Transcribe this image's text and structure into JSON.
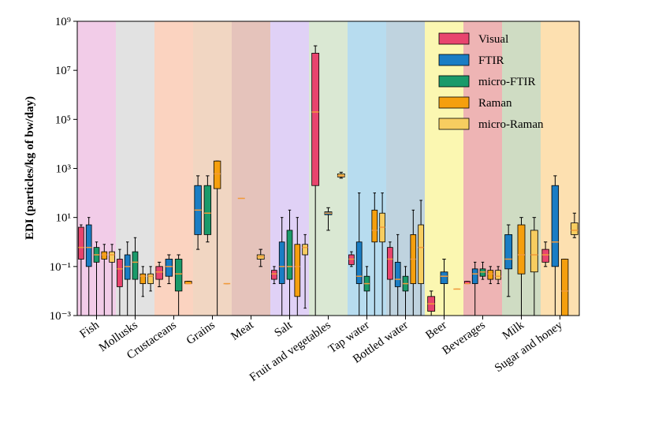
{
  "chart_data": {
    "type": "box",
    "y_label": "EDI (particles/kg of bw/day)",
    "y_scale": "log",
    "ylim": [
      0.001,
      1000000000
    ],
    "yticks": [
      {
        "value": 0.001,
        "label": "10⁻³"
      },
      {
        "value": 0.1,
        "label": "10⁻¹"
      },
      {
        "value": 10,
        "label": "10¹"
      },
      {
        "value": 1000,
        "label": "10³"
      },
      {
        "value": 100000,
        "label": "10⁵"
      },
      {
        "value": 10000000,
        "label": "10⁷"
      },
      {
        "value": 1000000000,
        "label": "10⁹"
      }
    ],
    "legend": "upper right",
    "median_color": "#f29a3a",
    "categories": [
      "Fish",
      "Mollusks",
      "Crustaceans",
      "Grains",
      "Meat",
      "Salt",
      "Fruit and vegetables",
      "Tap water",
      "Bottled water",
      "Beer",
      "Beverages",
      "Milk",
      "Sugar and honey"
    ],
    "band_colors": [
      "#f2cce8",
      "#e2e2e2",
      "#fbd3c0",
      "#f1d6c2",
      "#e5c3bb",
      "#e0d1f6",
      "#dae8d3",
      "#b7dcef",
      "#bfd3df",
      "#fbf7b1",
      "#eeb4b4",
      "#cfdcc3",
      "#fde0b0"
    ],
    "series": [
      {
        "name": "Visual",
        "color": "#e8446e",
        "values": [
          [
            0.001,
            0.2,
            0.6,
            4,
            5
          ],
          [
            0.001,
            0.015,
            0.08,
            0.2,
            0.5
          ],
          [
            0.015,
            0.03,
            0.06,
            0.1,
            0.15
          ],
          null,
          null,
          [
            0.02,
            0.03,
            0.05,
            0.07,
            0.1
          ],
          [
            0.001,
            200,
            200000,
            50000000,
            100000000
          ],
          [
            0.1,
            0.12,
            0.2,
            0.3,
            0.4
          ],
          [
            0.001,
            0.03,
            0.2,
            0.6,
            1
          ],
          [
            0.001,
            0.0015,
            0.003,
            0.006,
            0.01
          ],
          [
            0.02,
            0.02,
            0.02,
            0.025,
            0.025
          ],
          null,
          [
            0.1,
            0.15,
            0.3,
            0.5,
            1
          ]
        ]
      },
      {
        "name": "FTIR",
        "color": "#1a7dc4",
        "values": [
          [
            0.001,
            0.1,
            0.6,
            5,
            10
          ],
          [
            0.001,
            0.03,
            0.1,
            0.3,
            1
          ],
          [
            0.02,
            0.04,
            0.1,
            0.2,
            0.3
          ],
          [
            0.5,
            2,
            20,
            200,
            500
          ],
          null,
          [
            0.001,
            0.02,
            0.1,
            1,
            10
          ],
          [
            3,
            13,
            15,
            17,
            25
          ],
          [
            0.001,
            0.02,
            0.04,
            1,
            100
          ],
          [
            0.001,
            0.015,
            0.03,
            0.15,
            2
          ],
          [
            0.001,
            0.02,
            0.04,
            0.06,
            0.2
          ],
          [
            0.001,
            0.02,
            0.05,
            0.08,
            0.15
          ],
          [
            0.006,
            0.08,
            0.2,
            2,
            5
          ],
          [
            0.001,
            0.1,
            1,
            200,
            500
          ]
        ]
      },
      {
        "name": "micro-FTIR",
        "color": "#1a9a6a",
        "values": [
          [
            0.001,
            0.15,
            0.3,
            0.6,
            1
          ],
          [
            0.001,
            0.03,
            0.15,
            0.4,
            1.5
          ],
          [
            0.001,
            0.01,
            0.05,
            0.2,
            0.3
          ],
          [
            1,
            2,
            15,
            200,
            500
          ],
          null,
          [
            0.001,
            0.03,
            0.1,
            3,
            20
          ],
          null,
          [
            0.001,
            0.01,
            0.02,
            0.04,
            0.1
          ],
          [
            0.001,
            0.01,
            0.02,
            0.04,
            0.1
          ],
          null,
          [
            0.03,
            0.04,
            0.06,
            0.08,
            0.15
          ],
          null,
          null
        ]
      },
      {
        "name": "Raman",
        "color": "#f59f0e",
        "values": [
          [
            0.001,
            0.2,
            0.3,
            0.4,
            0.8
          ],
          [
            0.006,
            0.02,
            0.04,
            0.05,
            0.1
          ],
          [
            0.02,
            0.02,
            0.02,
            0.025,
            0.025
          ],
          [
            0.001,
            150,
            600,
            2000,
            2000
          ],
          [
            60,
            60,
            60,
            60,
            60
          ],
          [
            0.001,
            0.006,
            0.1,
            0.8,
            10
          ],
          null,
          [
            0.001,
            1,
            3,
            20,
            100
          ],
          [
            0.001,
            0.02,
            0.2,
            2,
            20
          ],
          [
            0.012,
            0.012,
            0.012,
            0.012,
            0.012
          ],
          [
            0.02,
            0.03,
            0.05,
            0.07,
            0.1
          ],
          [
            0.001,
            0.05,
            0.3,
            5,
            10
          ],
          [
            0.001,
            0.001,
            0.01,
            0.2,
            0.2
          ]
        ]
      },
      {
        "name": "micro-Raman",
        "color": "#f7cd60",
        "values": [
          [
            0.001,
            0.15,
            0.3,
            0.4,
            0.8
          ],
          [
            0.01,
            0.02,
            0.04,
            0.05,
            0.1
          ],
          null,
          [
            0.02,
            0.02,
            0.02,
            0.02,
            0.02
          ],
          [
            0.1,
            0.2,
            0.25,
            0.3,
            0.5
          ],
          [
            0.002,
            0.3,
            0.6,
            0.8,
            2
          ],
          [
            400,
            450,
            500,
            600,
            700
          ],
          [
            0.001,
            1,
            4,
            15,
            100
          ],
          [
            0.001,
            0.02,
            0.6,
            5,
            50
          ],
          null,
          [
            0.02,
            0.03,
            0.04,
            0.07,
            0.1
          ],
          [
            0.001,
            0.06,
            0.3,
            3,
            10
          ],
          [
            1.5,
            2,
            3,
            6,
            15
          ]
        ]
      }
    ]
  }
}
